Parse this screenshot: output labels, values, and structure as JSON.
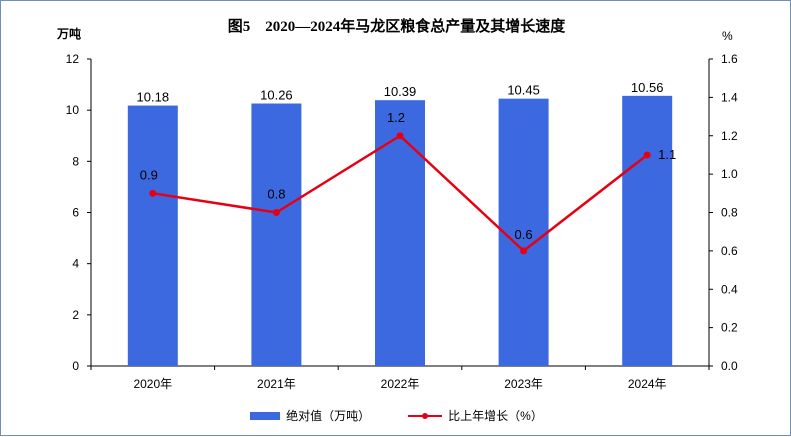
{
  "title": "图5　2020—2024年马龙区粮食总产量及其增长速度",
  "unit_left": "万吨",
  "unit_right": "%",
  "colors": {
    "bar": "#3d69e0",
    "line": "#e60012",
    "axis": "#000000",
    "frame": "#6f8fb6"
  },
  "legend": {
    "bar_label": "绝对值（万吨）",
    "line_label": "比上年增长（%）"
  },
  "chart_data": {
    "type": "bar",
    "categories": [
      "2020年",
      "2021年",
      "2022年",
      "2023年",
      "2024年"
    ],
    "series": [
      {
        "name": "绝对值（万吨）",
        "type": "bar",
        "axis": "left",
        "values": [
          10.18,
          10.26,
          10.39,
          10.45,
          10.56
        ],
        "labels": [
          "10.18",
          "10.26",
          "10.39",
          "10.45",
          "10.56"
        ]
      },
      {
        "name": "比上年增长（%）",
        "type": "line",
        "axis": "right",
        "values": [
          0.9,
          0.8,
          1.2,
          0.6,
          1.1
        ],
        "labels": [
          "0.9",
          "0.8",
          "1.2",
          "0.6",
          "1.1"
        ]
      }
    ],
    "ylim_left": [
      0,
      12
    ],
    "yticks_left": [
      "0",
      "2",
      "4",
      "6",
      "8",
      "10",
      "12"
    ],
    "ylim_right": [
      0,
      1.6
    ],
    "yticks_right": [
      "0.0",
      "0.2",
      "0.4",
      "0.6",
      "0.8",
      "1.0",
      "1.2",
      "1.4",
      "1.6"
    ],
    "grid": false,
    "legend_position": "bottom"
  }
}
